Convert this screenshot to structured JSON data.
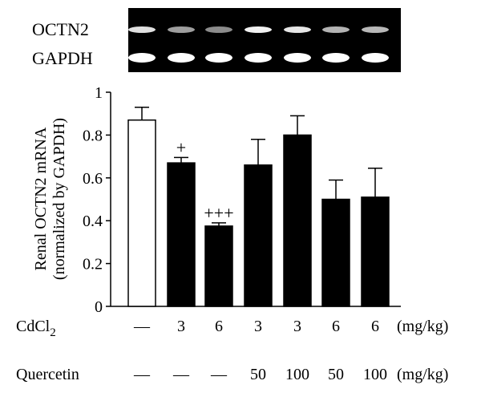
{
  "gel": {
    "bands": [
      {
        "label": "OCTN2",
        "intensity": [
          0.88,
          0.62,
          0.55,
          0.95,
          0.9,
          0.7,
          0.72
        ]
      },
      {
        "label": "GAPDH",
        "intensity": [
          1,
          1,
          1,
          1,
          1,
          1,
          1
        ]
      }
    ]
  },
  "chart_data": {
    "type": "bar",
    "ylabel_line1": "Renal OCTN2 mRNA",
    "ylabel_line2": "(normalized by GAPDH)",
    "ylim": [
      0,
      1
    ],
    "yticks": [
      "0",
      "0.2",
      "0.4",
      "0.6",
      "0.8",
      "1"
    ],
    "ytick_values": [
      0,
      0.2,
      0.4,
      0.6,
      0.8,
      1.0
    ],
    "grid": false,
    "bars": [
      {
        "value": 0.87,
        "error": 0.06,
        "fill": "#ffffff",
        "annotation": ""
      },
      {
        "value": 0.67,
        "error": 0.025,
        "fill": "#000000",
        "annotation": "+"
      },
      {
        "value": 0.375,
        "error": 0.015,
        "fill": "#000000",
        "annotation": "+++"
      },
      {
        "value": 0.66,
        "error": 0.12,
        "fill": "#000000",
        "annotation": ""
      },
      {
        "value": 0.8,
        "error": 0.09,
        "fill": "#000000",
        "annotation": ""
      },
      {
        "value": 0.5,
        "error": 0.09,
        "fill": "#000000",
        "annotation": ""
      },
      {
        "value": 0.51,
        "error": 0.135,
        "fill": "#000000",
        "annotation": ""
      }
    ],
    "conditions": [
      {
        "name": "CdCl",
        "subscript": "2",
        "values": [
          "—",
          "3",
          "6",
          "3",
          "3",
          "6",
          "6"
        ],
        "unit": "(mg/kg)"
      },
      {
        "name": "Quercetin",
        "subscript": "",
        "values": [
          "—",
          "—",
          "—",
          "50",
          "100",
          "50",
          "100"
        ],
        "unit": "(mg/kg)"
      }
    ]
  }
}
